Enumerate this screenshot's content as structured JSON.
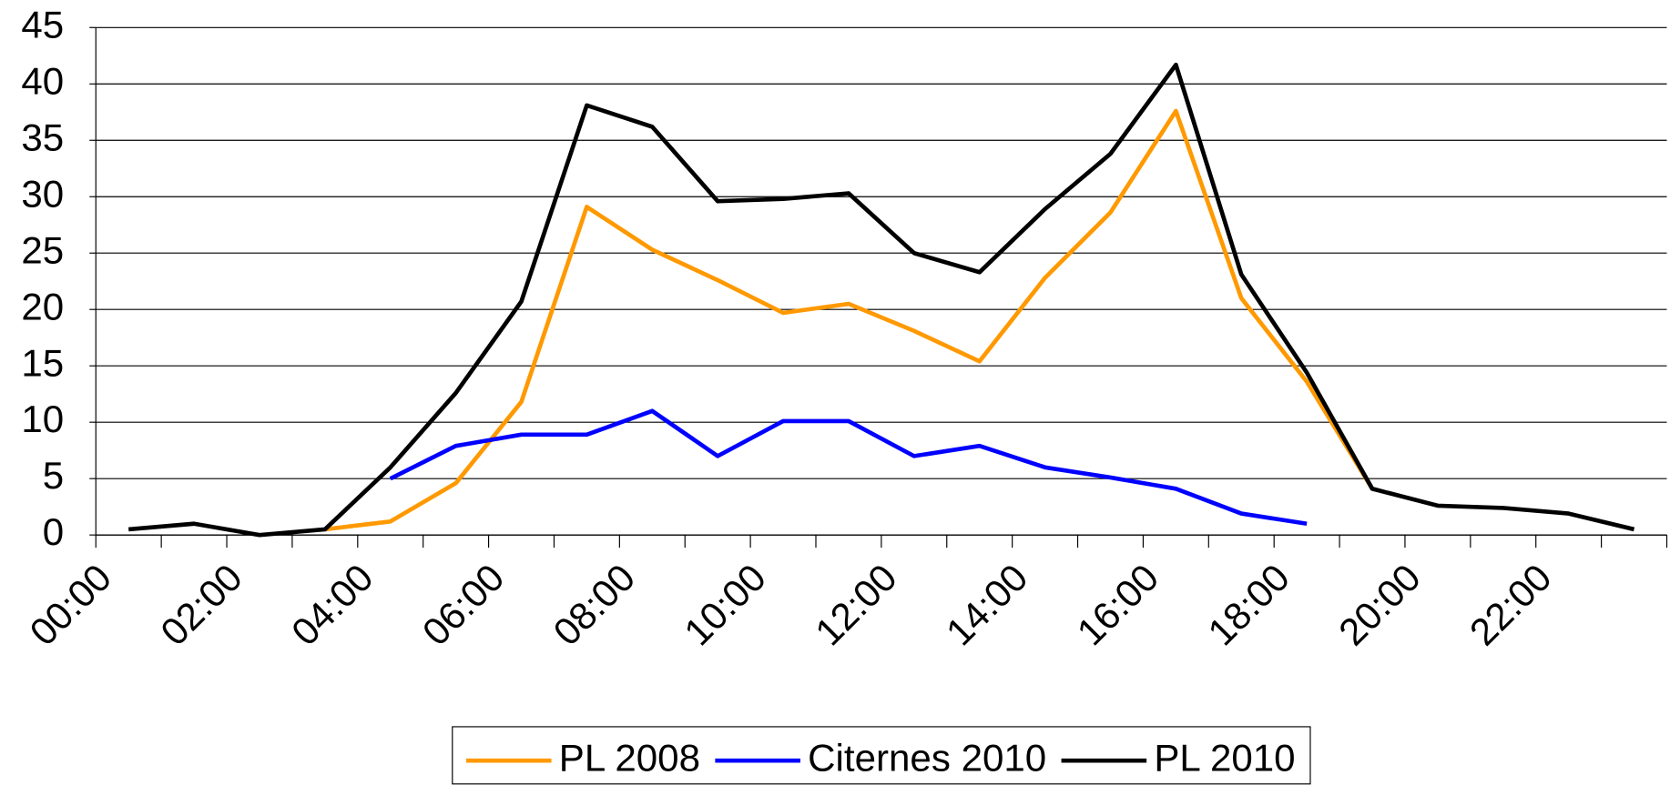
{
  "chart_data": {
    "type": "line",
    "categories": [
      "00:00",
      null,
      "02:00",
      null,
      "04:00",
      null,
      "06:00",
      null,
      "08:00",
      null,
      "10:00",
      null,
      "12:00",
      null,
      "14:00",
      null,
      "16:00",
      null,
      "18:00",
      null,
      "20:00",
      null,
      "22:00",
      null
    ],
    "series": [
      {
        "name": "PL 2008",
        "color": "#ff9900",
        "values": [
          null,
          null,
          null,
          0.5,
          1.2,
          4.6,
          11.8,
          29.1,
          25.3,
          22.6,
          19.7,
          20.5,
          18.1,
          15.4,
          22.8,
          28.6,
          37.6,
          21,
          13.6,
          4.1,
          null,
          null,
          null,
          null
        ]
      },
      {
        "name": "Citernes 2010",
        "color": "#0000ff",
        "values": [
          null,
          null,
          null,
          null,
          5,
          7.9,
          8.9,
          8.9,
          11,
          7,
          10.1,
          10.1,
          7,
          7.9,
          6,
          5.1,
          4.1,
          1.9,
          1,
          null,
          null,
          null,
          null,
          null
        ]
      },
      {
        "name": "PL 2010",
        "color": "#000000",
        "values": [
          0.5,
          1,
          0,
          0.5,
          6,
          12.6,
          20.7,
          38.1,
          36.2,
          29.6,
          29.8,
          30.3,
          25,
          23.3,
          28.9,
          33.8,
          41.7,
          23.1,
          14.4,
          4.1,
          2.6,
          2.4,
          1.9,
          0.5
        ]
      }
    ],
    "ylim": [
      0,
      45
    ],
    "yticks": [
      0,
      5,
      10,
      15,
      20,
      25,
      30,
      35,
      40,
      45
    ],
    "grid": true,
    "legend": "bottom"
  }
}
